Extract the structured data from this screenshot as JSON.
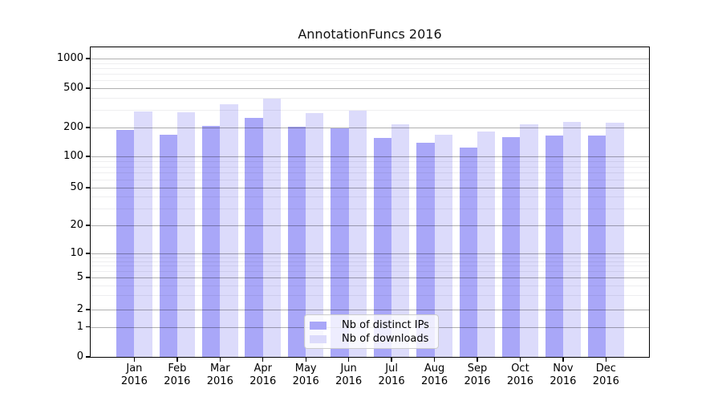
{
  "chart_data": {
    "type": "bar",
    "title": "AnnotationFuncs 2016",
    "x_months": [
      "Jan",
      "Feb",
      "Mar",
      "Apr",
      "May",
      "Jun",
      "Jul",
      "Aug",
      "Sep",
      "Oct",
      "Nov",
      "Dec"
    ],
    "x_year": "2016",
    "series": [
      {
        "name": "Nb of distinct IPs",
        "color": "#a9a7f8",
        "values": [
          187,
          167,
          207,
          250,
          203,
          195,
          155,
          140,
          123,
          158,
          165,
          165
        ]
      },
      {
        "name": "Nb of downloads",
        "color": "#dcdbfb",
        "values": [
          290,
          283,
          345,
          395,
          278,
          297,
          217,
          167,
          183,
          215,
          226,
          223
        ]
      }
    ],
    "y_ticks": [
      0,
      1,
      2,
      5,
      10,
      20,
      50,
      100,
      200,
      500,
      1000
    ],
    "y_scale": "symlog",
    "ylim": [
      0,
      1300
    ],
    "grid": "both",
    "legend_position": "lower center"
  },
  "colors": {
    "grid_major": "#b0b0b0",
    "grid_minor": "#ededed",
    "axis": "#000000",
    "background": "#ffffff"
  }
}
